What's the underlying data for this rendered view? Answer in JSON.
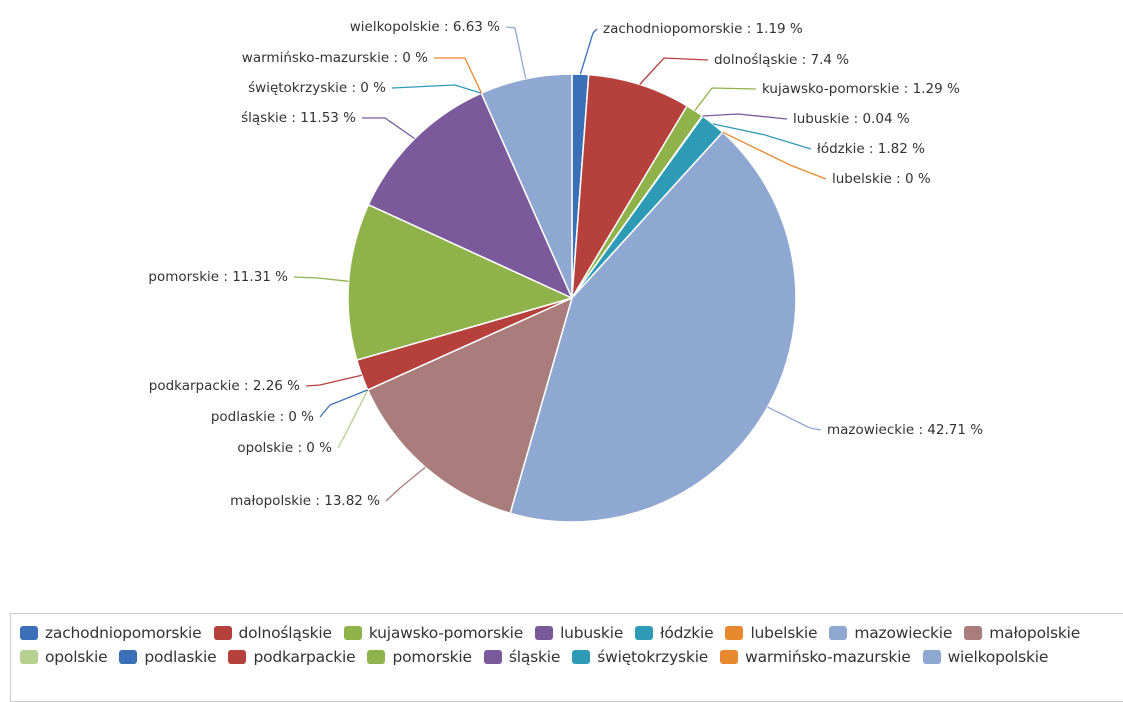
{
  "chart_data": {
    "type": "pie",
    "value_suffix": " %",
    "legend_position": "bottom",
    "slices": [
      {
        "name": "zachodniopomorskie",
        "value": 1.19,
        "color": "#3b70b8"
      },
      {
        "name": "dolnośląskie",
        "value": 7.4,
        "color": "#b5403c"
      },
      {
        "name": "kujawsko-pomorskie",
        "value": 1.29,
        "color": "#8fb34a"
      },
      {
        "name": "lubuskie",
        "value": 0.04,
        "color": "#7b5a9c"
      },
      {
        "name": "łódzkie",
        "value": 1.82,
        "color": "#2e9bb6"
      },
      {
        "name": "lubelskie",
        "value": 0,
        "color": "#e8882f"
      },
      {
        "name": "mazowieckie",
        "value": 42.71,
        "color": "#8fa8d2"
      },
      {
        "name": "małopolskie",
        "value": 13.82,
        "color": "#a87d7b"
      },
      {
        "name": "opolskie",
        "value": 0,
        "color": "#b5d08f"
      },
      {
        "name": "podlaskie",
        "value": 0,
        "color": "#3b70b8"
      },
      {
        "name": "podkarpackie",
        "value": 2.26,
        "color": "#b5403c"
      },
      {
        "name": "pomorskie",
        "value": 11.31,
        "color": "#8fb34a"
      },
      {
        "name": "śląskie",
        "value": 11.53,
        "color": "#7b5a9c"
      },
      {
        "name": "świętokrzyskie",
        "value": 0,
        "color": "#2e9bb6"
      },
      {
        "name": "warmińsko-mazurskie",
        "value": 0,
        "color": "#e8882f"
      },
      {
        "name": "wielkopolskie",
        "value": 6.63,
        "color": "#8fa8d2"
      }
    ]
  }
}
